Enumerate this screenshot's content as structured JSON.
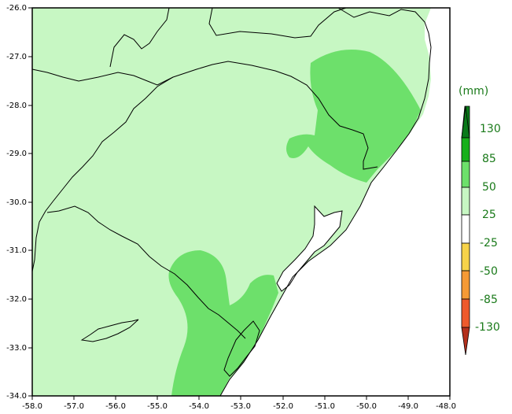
{
  "map": {
    "x_ticks": [
      "-58.0",
      "-57.0",
      "-56.0",
      "-55.0",
      "-54.0",
      "-53.0",
      "-52.0",
      "-51.0",
      "-50.0",
      "-49.0",
      "-48.0"
    ],
    "y_ticks": [
      "-26.0",
      "-27.0",
      "-28.0",
      "-29.0",
      "-30.0",
      "-31.0",
      "-32.0",
      "-33.0",
      "-34.0"
    ],
    "colors": {
      "band_25_50": "#c7f7c3",
      "band_50_85": "#6de06b",
      "band_neg25_25": "#ffffff",
      "boundary": "#000000"
    }
  },
  "legend": {
    "unit": "(mm)",
    "labels": [
      "130",
      "85",
      "50",
      "25",
      "-25",
      "-50",
      "-85",
      "-130"
    ],
    "colors": {
      "c_gt130": "#0a7a1a",
      "c_85_130": "#17b01b",
      "c_50_85": "#6de06b",
      "c_25_50": "#c7f7c3",
      "c_neg25_25": "#ffffff",
      "c_neg50_neg25": "#f7d34a",
      "c_neg85_neg50": "#f59a35",
      "c_neg130_neg85": "#ee5a2c",
      "c_lt_neg130": "#b3301c"
    }
  }
}
